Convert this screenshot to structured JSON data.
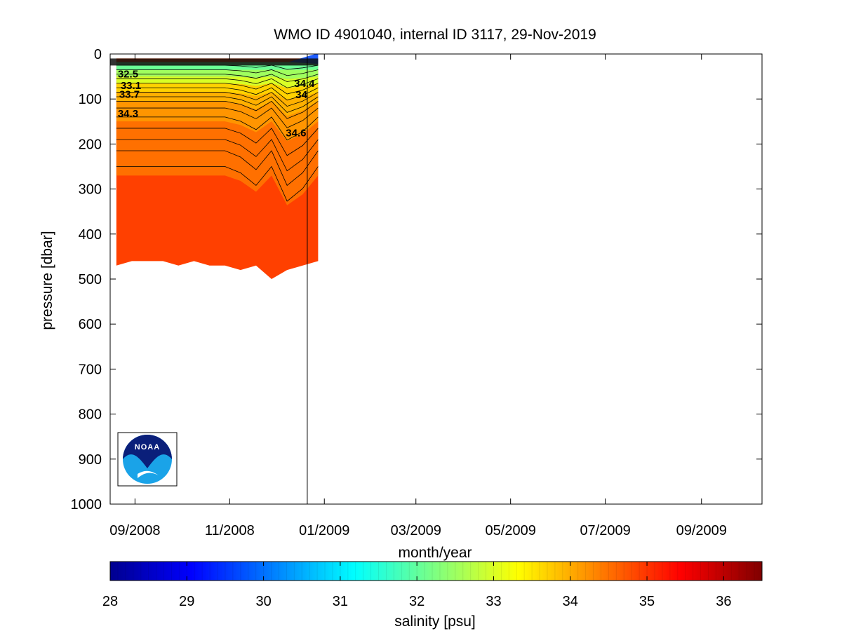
{
  "chart_data": {
    "type": "contour",
    "title": "WMO ID 4901040, internal ID 3117, 29-Nov-2019",
    "xlabel": "month/year",
    "ylabel": "pressure [dbar]",
    "colorbar_label": "salinity [psu]",
    "x_ticks": [
      "09/2008",
      "11/2008",
      "01/2009",
      "03/2009",
      "05/2009",
      "07/2009",
      "09/2009"
    ],
    "y_ticks": [
      0,
      100,
      200,
      300,
      400,
      500,
      600,
      700,
      800,
      900,
      1000
    ],
    "ylim": [
      1000,
      0
    ],
    "y_reversed": true,
    "xlim": [
      "2008-08-16",
      "2009-10-10"
    ],
    "colorbar_ticks": [
      28,
      29,
      30,
      31,
      32,
      33,
      34,
      35,
      36
    ],
    "colorbar_range": [
      28,
      36.5
    ],
    "colormap": "jet",
    "grid": false,
    "profile_dates": [
      "2008-08-20",
      "2008-08-30",
      "2008-09-09",
      "2008-09-19",
      "2008-09-29",
      "2008-10-09",
      "2008-10-19",
      "2008-10-29",
      "2008-11-08",
      "2008-11-18",
      "2008-11-28",
      "2008-12-08",
      "2008-12-18",
      "2008-12-28"
    ],
    "profile_max_pressure": [
      470,
      460,
      460,
      460,
      470,
      460,
      470,
      470,
      480,
      470,
      500,
      480,
      470,
      460
    ],
    "contour_levels": [
      32.5,
      33.1,
      33.7,
      34.3,
      34.4,
      34.6
    ],
    "contour_labels": [
      "32.5",
      "33.1",
      "33.7",
      "34.3",
      "34",
      "34.4",
      "34.6"
    ],
    "vertical_marker_date": "2008-12-21",
    "logo": "NOAA"
  }
}
